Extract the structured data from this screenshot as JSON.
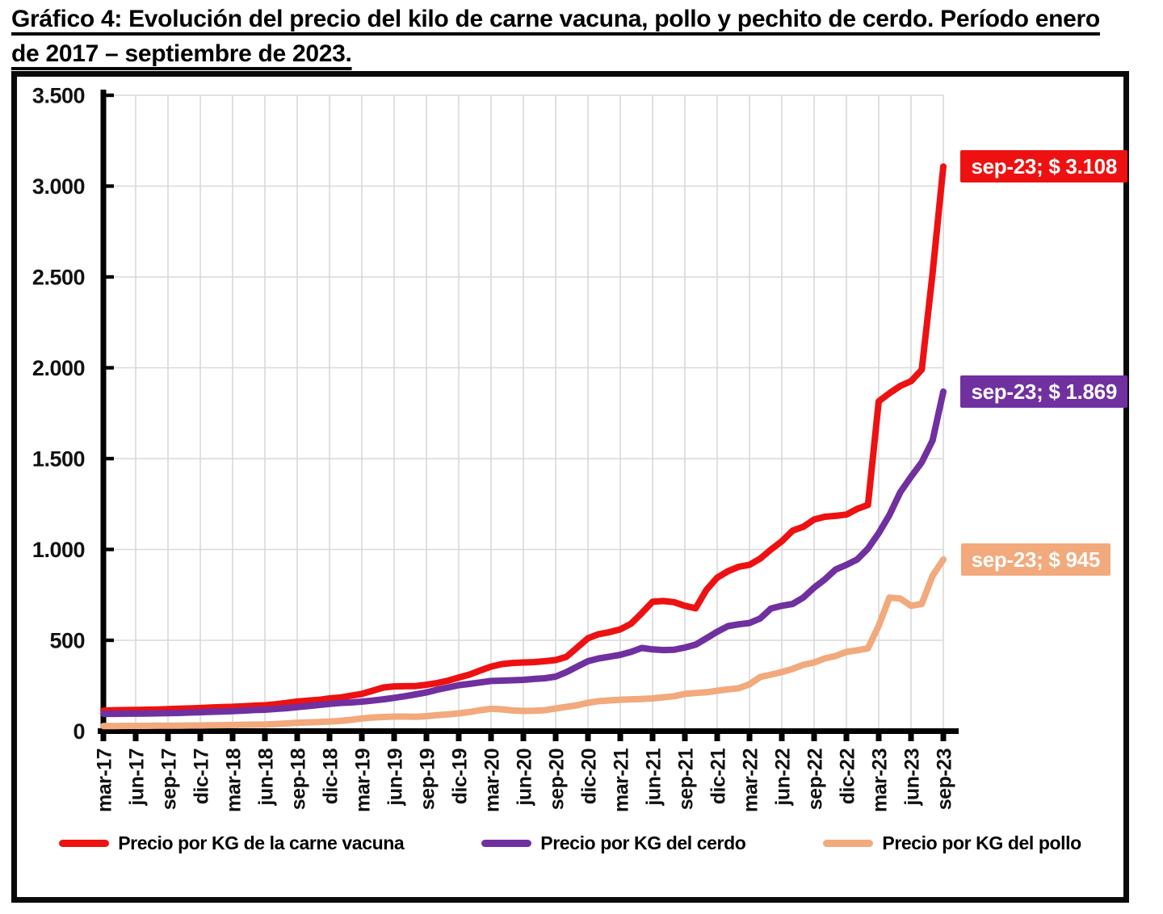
{
  "title": {
    "line1": "Gráfico 4: Evolución del precio del kilo de carne vacuna, pollo y pechito de cerdo. Período enero",
    "line2": "de 2017 – septiembre de 2023."
  },
  "colors": {
    "beef": "#ee1111",
    "pork": "#7030a0",
    "chicken": "#f2a97c",
    "grid": "#d9d9d9",
    "axis": "#000000"
  },
  "legend": {
    "items": [
      {
        "key": "beef",
        "label": "Precio por KG de la carne vacuna",
        "color": "#ee1111"
      },
      {
        "key": "pork",
        "label": "Precio por KG del cerdo",
        "color": "#7030a0"
      },
      {
        "key": "chicken",
        "label": "Precio por KG del pollo",
        "color": "#f2a97c"
      }
    ]
  },
  "annotations": [
    {
      "text": "sep-23; $ 3.108",
      "value": 3108,
      "color": "#ee1111"
    },
    {
      "text": "sep-23; $ 1.869",
      "value": 1869,
      "color": "#7030a0"
    },
    {
      "text": "sep-23; $ 945",
      "value": 945,
      "color": "#f2a97c"
    }
  ],
  "chart_data": {
    "type": "line",
    "title": "Evolución del precio del kilo de carne vacuna, pollo y pechito de cerdo",
    "xlabel": "",
    "ylabel": "",
    "ylim": [
      0,
      3500
    ],
    "grid": true,
    "legend_position": "bottom",
    "x_tick_labels": [
      "mar-17",
      "jun-17",
      "sep-17",
      "dic-17",
      "mar-18",
      "jun-18",
      "sep-18",
      "dic-18",
      "mar-19",
      "jun-19",
      "sep-19",
      "dic-19",
      "mar-20",
      "jun-20",
      "sep-20",
      "dic-20",
      "mar-21",
      "jun-21",
      "sep-21",
      "dic-21",
      "mar-22",
      "jun-22",
      "sep-22",
      "dic-22",
      "mar-23",
      "jun-23",
      "sep-23"
    ],
    "y_tick_labels": [
      "0",
      "500",
      "1.000",
      "1.500",
      "2.000",
      "2.500",
      "3.000",
      "3.500"
    ],
    "x_resolution": "monthly from mar-17 to sep-23",
    "series": [
      {
        "name": "Precio por KG de la carne vacuna",
        "key": "beef",
        "color": "#ee1111",
        "values": [
          113,
          115,
          116,
          117,
          118,
          119,
          121,
          123,
          125,
          127,
          130,
          132,
          134,
          137,
          140,
          142,
          148,
          155,
          163,
          168,
          172,
          180,
          185,
          195,
          205,
          222,
          240,
          246,
          247,
          248,
          255,
          265,
          278,
          295,
          311,
          334,
          355,
          369,
          375,
          378,
          380,
          385,
          391,
          409,
          460,
          511,
          534,
          545,
          560,
          591,
          650,
          712,
          716,
          710,
          690,
          676,
          778,
          845,
          880,
          905,
          915,
          950,
          1000,
          1045,
          1103,
          1125,
          1165,
          1180,
          1185,
          1192,
          1223,
          1245,
          1815,
          1860,
          1900,
          1926,
          1990,
          2520,
          3108
        ]
      },
      {
        "name": "Precio por KG del cerdo",
        "key": "pork",
        "color": "#7030a0",
        "values": [
          95,
          95,
          96,
          96,
          97,
          98,
          99,
          100,
          102,
          104,
          106,
          108,
          110,
          113,
          116,
          118,
          122,
          126,
          132,
          138,
          144,
          150,
          155,
          158,
          162,
          168,
          175,
          183,
          192,
          202,
          213,
          228,
          240,
          253,
          260,
          268,
          276,
          278,
          280,
          282,
          287,
          291,
          300,
          325,
          355,
          385,
          400,
          410,
          420,
          436,
          458,
          450,
          446,
          448,
          460,
          476,
          511,
          547,
          578,
          588,
          595,
          620,
          675,
          690,
          700,
          735,
          790,
          835,
          890,
          915,
          945,
          1005,
          1090,
          1190,
          1315,
          1400,
          1480,
          1600,
          1869
        ]
      },
      {
        "name": "Precio por KG del pollo",
        "key": "chicken",
        "color": "#f2a97c",
        "values": [
          28,
          28,
          29,
          29,
          29,
          30,
          30,
          30,
          31,
          31,
          32,
          33,
          34,
          35,
          36,
          37,
          39,
          42,
          46,
          48,
          50,
          53,
          56,
          62,
          70,
          75,
          78,
          80,
          80,
          79,
          82,
          88,
          92,
          98,
          105,
          115,
          123,
          120,
          114,
          111,
          112,
          115,
          125,
          134,
          142,
          156,
          165,
          169,
          173,
          175,
          177,
          180,
          186,
          192,
          205,
          210,
          214,
          222,
          230,
          236,
          258,
          298,
          311,
          325,
          342,
          365,
          378,
          400,
          414,
          436,
          445,
          456,
          580,
          735,
          730,
          690,
          700,
          855,
          945
        ]
      }
    ]
  }
}
